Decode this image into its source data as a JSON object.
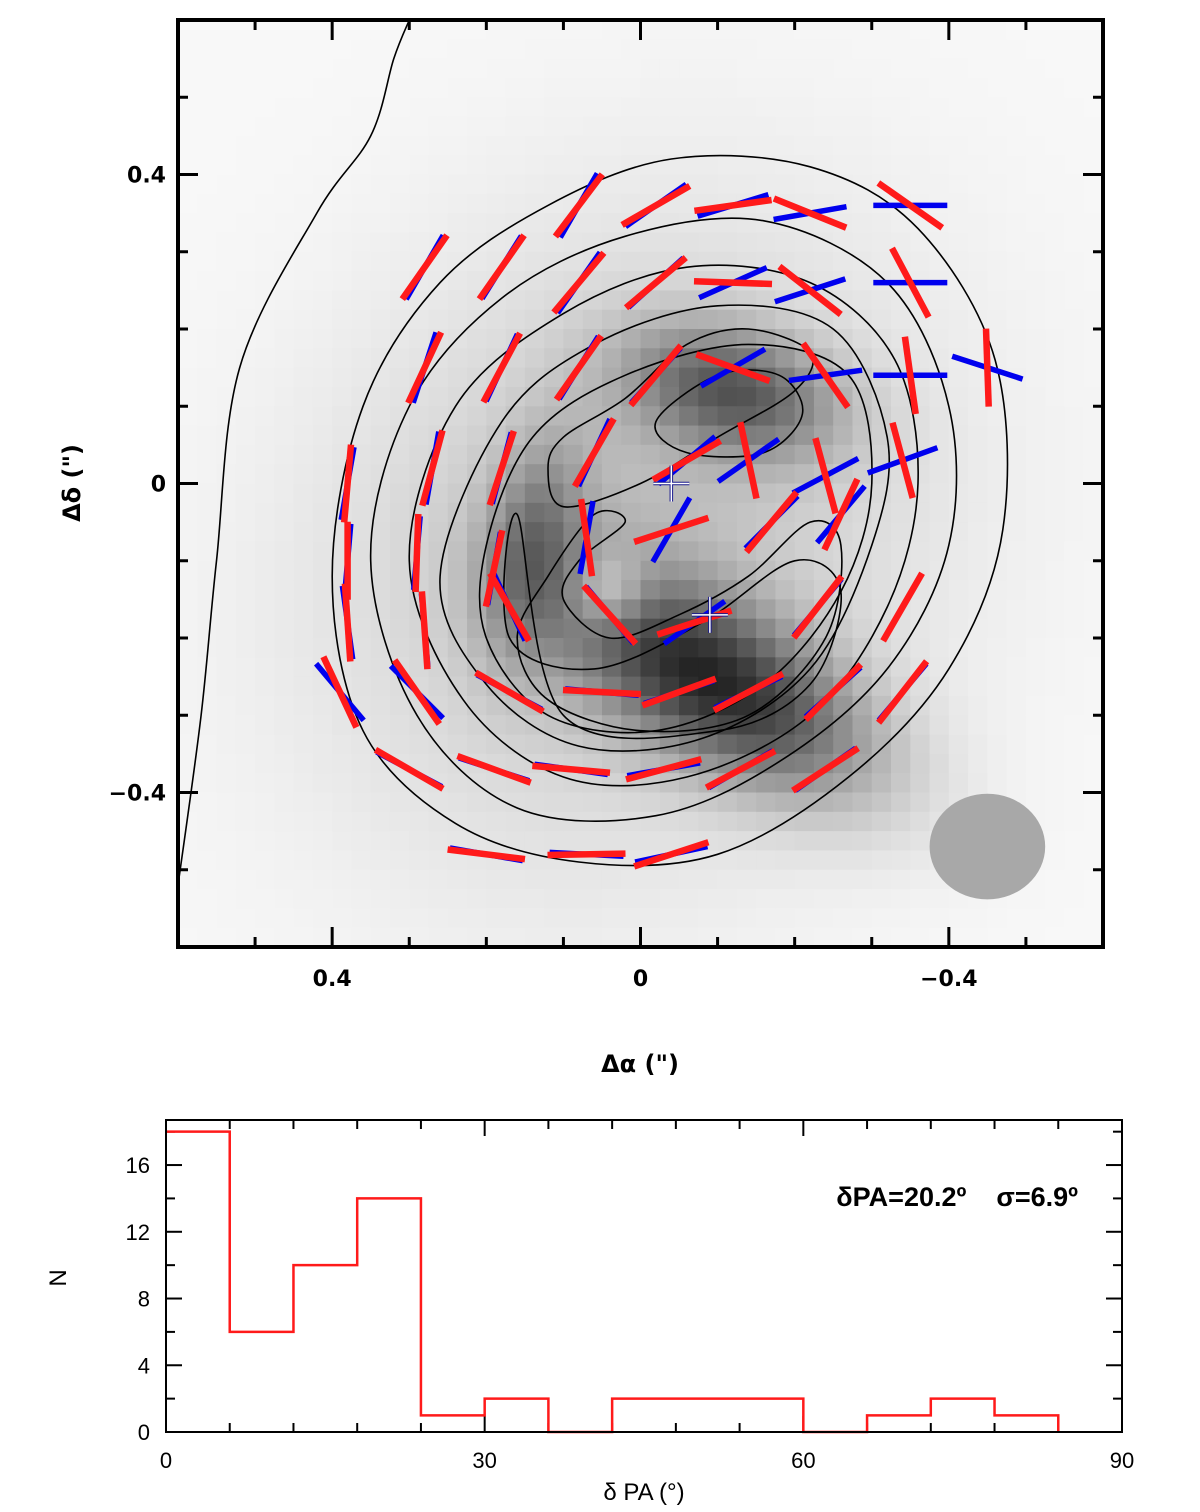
{
  "chart_data": [
    {
      "type": "image-map",
      "xlabel": "Δα (\")",
      "ylabel": "Δδ (\")",
      "xlim": [
        0.6,
        -0.6
      ],
      "ylim": [
        -0.6,
        0.6
      ],
      "x_ticks": [
        {
          "value": 0.4,
          "label": "0.4"
        },
        {
          "value": 0,
          "label": "0"
        },
        {
          "value": -0.4,
          "label": "−0.4"
        }
      ],
      "y_ticks": [
        {
          "value": 0.4,
          "label": "0.4"
        },
        {
          "value": 0,
          "label": "0"
        },
        {
          "value": -0.4,
          "label": "−0.4"
        }
      ],
      "colors": {
        "frame": "#000000",
        "red_vectors": "#ff1a1a",
        "blue_vectors": "#0000ee",
        "contours": "#000000",
        "beam": "#a8a8a8"
      },
      "blobs": [
        {
          "x": 0.02,
          "y": -0.08,
          "rx": 0.36,
          "ry": 0.42,
          "rot": 35,
          "peak": 0.22
        },
        {
          "x": -0.1,
          "y": -0.26,
          "rx": 0.22,
          "ry": 0.1,
          "rot": 30,
          "peak": 0.68
        },
        {
          "x": -0.12,
          "y": 0.12,
          "rx": 0.14,
          "ry": 0.08,
          "rot": 15,
          "peak": 0.5
        },
        {
          "x": 0.14,
          "y": -0.08,
          "rx": 0.06,
          "ry": 0.14,
          "rot": 10,
          "peak": 0.32
        }
      ],
      "holes": [
        {
          "x": 0.04,
          "y": -0.14,
          "rx": 0.05,
          "ry": 0.05,
          "depth": 0.28
        }
      ],
      "contours": [
        [
          [
            0.3,
            0.6
          ],
          [
            0.32,
            0.55
          ],
          [
            0.35,
            0.45
          ],
          [
            0.42,
            0.35
          ],
          [
            0.52,
            0.15
          ],
          [
            0.55,
            -0.1
          ],
          [
            0.57,
            -0.3
          ],
          [
            0.6,
            -0.52
          ]
        ],
        [
          [
            0.4,
            -0.12
          ],
          [
            0.36,
            0.1
          ],
          [
            0.26,
            0.26
          ],
          [
            0.12,
            0.36
          ],
          [
            -0.04,
            0.42
          ],
          [
            -0.22,
            0.41
          ],
          [
            -0.36,
            0.33
          ],
          [
            -0.46,
            0.16
          ],
          [
            -0.47,
            -0.06
          ],
          [
            -0.4,
            -0.24
          ],
          [
            -0.27,
            -0.38
          ],
          [
            -0.1,
            -0.48
          ],
          [
            0.08,
            -0.49
          ],
          [
            0.24,
            -0.44
          ],
          [
            0.36,
            -0.32
          ],
          [
            0.4,
            -0.12
          ]
        ],
        [
          [
            0.35,
            -0.1
          ],
          [
            0.3,
            0.1
          ],
          [
            0.18,
            0.24
          ],
          [
            0.02,
            0.32
          ],
          [
            -0.16,
            0.34
          ],
          [
            -0.32,
            0.26
          ],
          [
            -0.4,
            0.1
          ],
          [
            -0.4,
            -0.08
          ],
          [
            -0.32,
            -0.24
          ],
          [
            -0.18,
            -0.36
          ],
          [
            -0.02,
            -0.43
          ],
          [
            0.16,
            -0.42
          ],
          [
            0.29,
            -0.3
          ],
          [
            0.35,
            -0.1
          ]
        ],
        [
          [
            0.3,
            -0.1
          ],
          [
            0.24,
            0.1
          ],
          [
            0.1,
            0.22
          ],
          [
            -0.06,
            0.28
          ],
          [
            -0.22,
            0.26
          ],
          [
            -0.33,
            0.16
          ],
          [
            -0.36,
            0.0
          ],
          [
            -0.32,
            -0.16
          ],
          [
            -0.22,
            -0.3
          ],
          [
            -0.06,
            -0.38
          ],
          [
            0.1,
            -0.38
          ],
          [
            0.23,
            -0.28
          ],
          [
            0.3,
            -0.1
          ]
        ],
        [
          [
            0.26,
            -0.12
          ],
          [
            0.18,
            0.08
          ],
          [
            0.06,
            0.18
          ],
          [
            -0.1,
            0.23
          ],
          [
            -0.25,
            0.2
          ],
          [
            -0.32,
            0.06
          ],
          [
            -0.3,
            -0.08
          ],
          [
            -0.22,
            -0.24
          ],
          [
            -0.08,
            -0.33
          ],
          [
            0.08,
            -0.34
          ],
          [
            0.2,
            -0.26
          ],
          [
            0.26,
            -0.12
          ]
        ],
        [
          [
            0.2,
            -0.08
          ],
          [
            0.14,
            0.06
          ],
          [
            0.02,
            0.14
          ],
          [
            -0.14,
            0.18
          ],
          [
            -0.27,
            0.14
          ],
          [
            -0.3,
            0.0
          ],
          [
            -0.26,
            -0.14
          ],
          [
            -0.16,
            -0.26
          ],
          [
            -0.02,
            -0.32
          ],
          [
            0.12,
            -0.3
          ],
          [
            0.2,
            -0.2
          ],
          [
            0.2,
            -0.08
          ]
        ],
        [
          [
            0.12,
            -0.12
          ],
          [
            0.06,
            -0.04
          ],
          [
            0.02,
            -0.05
          ],
          [
            0.08,
            -0.1
          ],
          [
            0.1,
            -0.15
          ],
          [
            0.04,
            -0.2
          ],
          [
            -0.05,
            -0.17
          ],
          [
            -0.14,
            -0.12
          ],
          [
            -0.22,
            -0.05
          ],
          [
            -0.26,
            -0.08
          ],
          [
            -0.24,
            -0.2
          ],
          [
            -0.14,
            -0.3
          ],
          [
            0.0,
            -0.32
          ],
          [
            0.12,
            -0.28
          ],
          [
            0.16,
            -0.2
          ],
          [
            0.12,
            -0.12
          ]
        ],
        [
          [
            0.12,
            0.02
          ],
          [
            0.1,
            0.06
          ],
          [
            0.02,
            0.11
          ],
          [
            -0.06,
            0.18
          ],
          [
            -0.14,
            0.2
          ],
          [
            -0.22,
            0.17
          ],
          [
            -0.2,
            0.12
          ],
          [
            -0.1,
            0.06
          ],
          [
            0.0,
            0.0
          ],
          [
            0.1,
            -0.03
          ],
          [
            0.12,
            0.02
          ]
        ],
        [
          [
            -0.02,
            0.08
          ],
          [
            -0.1,
            0.14
          ],
          [
            -0.18,
            0.14
          ],
          [
            -0.21,
            0.09
          ],
          [
            -0.16,
            0.04
          ],
          [
            -0.06,
            0.04
          ],
          [
            -0.02,
            0.08
          ]
        ],
        [
          [
            0.16,
            -0.04
          ],
          [
            0.17,
            -0.2
          ],
          [
            0.06,
            -0.24
          ],
          [
            -0.08,
            -0.18
          ],
          [
            -0.2,
            -0.1
          ],
          [
            -0.26,
            -0.14
          ],
          [
            -0.22,
            -0.26
          ],
          [
            -0.1,
            -0.32
          ],
          [
            0.1,
            -0.3
          ],
          [
            0.16,
            -0.04
          ]
        ]
      ],
      "vectors": [
        {
          "x": 0.08,
          "y": 0.36,
          "pa_red": 37,
          "pa_blue": 30
        },
        {
          "x": -0.02,
          "y": 0.36,
          "pa_red": 60,
          "pa_blue": 55
        },
        {
          "x": -0.12,
          "y": 0.36,
          "pa_red": 82,
          "pa_blue": 73
        },
        {
          "x": -0.22,
          "y": 0.35,
          "pa_red": 112,
          "pa_blue": 80
        },
        {
          "x": -0.35,
          "y": 0.36,
          "pa_red": 125,
          "pa_blue": 90
        },
        {
          "x": 0.28,
          "y": 0.28,
          "pa_red": 35,
          "pa_blue": 30
        },
        {
          "x": 0.18,
          "y": 0.28,
          "pa_red": 35,
          "pa_blue": 32
        },
        {
          "x": 0.08,
          "y": 0.26,
          "pa_red": 40,
          "pa_blue": 35
        },
        {
          "x": -0.02,
          "y": 0.26,
          "pa_red": 50,
          "pa_blue": 48
        },
        {
          "x": -0.12,
          "y": 0.26,
          "pa_red": 92,
          "pa_blue": 66
        },
        {
          "x": -0.22,
          "y": 0.25,
          "pa_red": 128,
          "pa_blue": 72
        },
        {
          "x": -0.35,
          "y": 0.26,
          "pa_red": 152,
          "pa_blue": 90
        },
        {
          "x": 0.28,
          "y": 0.15,
          "pa_red": 25,
          "pa_blue": 18
        },
        {
          "x": 0.18,
          "y": 0.15,
          "pa_red": 28,
          "pa_blue": 25
        },
        {
          "x": 0.08,
          "y": 0.15,
          "pa_red": 35,
          "pa_blue": 32
        },
        {
          "x": -0.02,
          "y": 0.14,
          "pa_red": 40,
          "pa_blue": 42
        },
        {
          "x": -0.12,
          "y": 0.15,
          "pa_red": 110,
          "pa_blue": 60
        },
        {
          "x": -0.24,
          "y": 0.14,
          "pa_red": 145,
          "pa_blue": 82
        },
        {
          "x": -0.35,
          "y": 0.14,
          "pa_red": 172,
          "pa_blue": 90
        },
        {
          "x": -0.45,
          "y": 0.15,
          "pa_red": 178,
          "pa_blue": 108
        },
        {
          "x": 0.38,
          "y": 0.0,
          "pa_red": 5,
          "pa_blue": 10
        },
        {
          "x": 0.27,
          "y": 0.02,
          "pa_red": 15,
          "pa_blue": 10
        },
        {
          "x": 0.18,
          "y": 0.02,
          "pa_red": 18,
          "pa_blue": 15
        },
        {
          "x": 0.06,
          "y": 0.04,
          "pa_red": 30,
          "pa_blue": 25
        },
        {
          "x": -0.06,
          "y": 0.03,
          "pa_red": 60,
          "pa_blue": 50
        },
        {
          "x": -0.14,
          "y": 0.03,
          "pa_red": 168,
          "pa_blue": 55
        },
        {
          "x": -0.24,
          "y": 0.01,
          "pa_red": 165,
          "pa_blue": 62
        },
        {
          "x": -0.34,
          "y": 0.03,
          "pa_red": 165,
          "pa_blue": 70
        },
        {
          "x": 0.38,
          "y": -0.1,
          "pa_red": 0,
          "pa_blue": 5
        },
        {
          "x": 0.29,
          "y": -0.09,
          "pa_red": 2,
          "pa_blue": 5
        },
        {
          "x": 0.19,
          "y": -0.11,
          "pa_red": 12,
          "pa_blue": 10
        },
        {
          "x": 0.07,
          "y": -0.07,
          "pa_red": 172,
          "pa_blue": 10
        },
        {
          "x": -0.04,
          "y": -0.06,
          "pa_red": 72,
          "pa_blue": 30
        },
        {
          "x": -0.17,
          "y": -0.05,
          "pa_red": 40,
          "pa_blue": 45
        },
        {
          "x": -0.26,
          "y": -0.04,
          "pa_red": 25,
          "pa_blue": 40
        },
        {
          "x": 0.38,
          "y": -0.18,
          "pa_red": 176,
          "pa_blue": 172
        },
        {
          "x": 0.28,
          "y": -0.19,
          "pa_red": 176,
          "pa_blue": 175
        },
        {
          "x": 0.17,
          "y": -0.16,
          "pa_red": 150,
          "pa_blue": 155
        },
        {
          "x": 0.04,
          "y": -0.17,
          "pa_red": 138,
          "pa_blue": 140
        },
        {
          "x": -0.07,
          "y": -0.18,
          "pa_red": 72,
          "pa_blue": 55
        },
        {
          "x": -0.23,
          "y": -0.16,
          "pa_red": 38,
          "pa_blue": 40
        },
        {
          "x": -0.34,
          "y": -0.16,
          "pa_red": 30,
          "pa_blue": 30
        },
        {
          "x": 0.39,
          "y": -0.27,
          "pa_red": 155,
          "pa_blue": 140
        },
        {
          "x": 0.29,
          "y": -0.27,
          "pa_red": 145,
          "pa_blue": 135
        },
        {
          "x": 0.17,
          "y": -0.27,
          "pa_red": 120,
          "pa_blue": 118
        },
        {
          "x": 0.05,
          "y": -0.27,
          "pa_red": 93,
          "pa_blue": 95
        },
        {
          "x": -0.05,
          "y": -0.27,
          "pa_red": 70,
          "pa_blue": 72
        },
        {
          "x": -0.14,
          "y": -0.27,
          "pa_red": 62,
          "pa_blue": 65
        },
        {
          "x": -0.25,
          "y": -0.27,
          "pa_red": 45,
          "pa_blue": 48
        },
        {
          "x": -0.34,
          "y": -0.27,
          "pa_red": 38,
          "pa_blue": 40
        },
        {
          "x": 0.3,
          "y": -0.37,
          "pa_red": 120,
          "pa_blue": 118
        },
        {
          "x": 0.19,
          "y": -0.37,
          "pa_red": 110,
          "pa_blue": 108
        },
        {
          "x": 0.09,
          "y": -0.37,
          "pa_red": 95,
          "pa_blue": 98
        },
        {
          "x": -0.03,
          "y": -0.37,
          "pa_red": 75,
          "pa_blue": 80
        },
        {
          "x": -0.13,
          "y": -0.37,
          "pa_red": 62,
          "pa_blue": 60
        },
        {
          "x": -0.24,
          "y": -0.37,
          "pa_red": 57,
          "pa_blue": 55
        },
        {
          "x": 0.2,
          "y": -0.48,
          "pa_red": 97,
          "pa_blue": 100
        },
        {
          "x": 0.07,
          "y": -0.48,
          "pa_red": 89,
          "pa_blue": 93
        },
        {
          "x": -0.04,
          "y": -0.48,
          "pa_red": 72,
          "pa_blue": 78
        }
      ],
      "crosses": [
        {
          "x": -0.04,
          "y": 0.0
        },
        {
          "x": -0.09,
          "y": -0.17
        }
      ],
      "beam": {
        "x": -0.45,
        "y": -0.47,
        "major": 0.15,
        "minor": 0.137,
        "pa": 0
      }
    },
    {
      "type": "histogram",
      "xlabel": "δ PA (°)",
      "ylabel": "N",
      "xlim": [
        0,
        90
      ],
      "ylim": [
        0,
        18.7
      ],
      "x_ticks": [
        {
          "value": 0,
          "label": "0"
        },
        {
          "value": 30,
          "label": "30"
        },
        {
          "value": 60,
          "label": "60"
        },
        {
          "value": 90,
          "label": "90"
        }
      ],
      "y_ticks": [
        {
          "value": 0,
          "label": "0"
        },
        {
          "value": 4,
          "label": "4"
        },
        {
          "value": 8,
          "label": "8"
        },
        {
          "value": 12,
          "label": "12"
        },
        {
          "value": 16,
          "label": "16"
        }
      ],
      "bin_edges": [
        0,
        6,
        12,
        18,
        24,
        30,
        36,
        42,
        48,
        54,
        60,
        66,
        72,
        78,
        84
      ],
      "counts": [
        18,
        6,
        10,
        14,
        1,
        2,
        0,
        2,
        2,
        2,
        0,
        1,
        2,
        1
      ],
      "color": "#ff1a1a",
      "annotation": "δPA=20.2º    σ=6.9º"
    }
  ]
}
